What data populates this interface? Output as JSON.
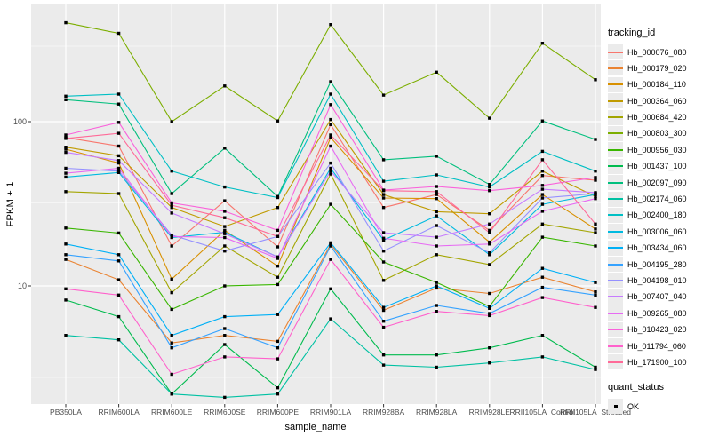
{
  "chart": {
    "x_axis_title": "sample_name",
    "y_axis_title": "FPKM + 1",
    "y_tick_labels": [
      "100",
      "10"
    ],
    "legend": {
      "tracking_title": "tracking_id",
      "quant_title": "quant_status",
      "quant_items": [
        {
          "label": "OK",
          "shape": "black-square"
        }
      ]
    },
    "colors": {
      "panel_bg": "#EBEBEB",
      "gridline": "#FFFFFF",
      "tick_label": "#4D4D4D",
      "axis_title": "#000000",
      "point": "#000000"
    }
  },
  "chart_data": {
    "type": "line",
    "title": "",
    "xlabel": "sample_name",
    "ylabel": "FPKM + 1",
    "y_scale": "log10",
    "ylim": [
      1.9,
      450
    ],
    "y_major_ticks": [
      10,
      100
    ],
    "y_minor_gridlines_approx": [
      2.8,
      31.6,
      290
    ],
    "grid": true,
    "legend_position": "right",
    "point_marker": "filled-black-square (quant_status = OK)",
    "categories": [
      "PB350LA",
      "RRIM600LA",
      "RRIM600LE",
      "RRIM600SE",
      "RRIM600PE",
      "RRIM901LA",
      "RRIM928BA",
      "RRIM928LA",
      "RRIM928LE",
      "RRII105LA_Control",
      "RRII105LA_Stressed"
    ],
    "series": [
      {
        "name": "Hb_000076_080",
        "color": "#F8766D",
        "values": [
          80,
          71,
          17.5,
          33,
          17.3,
          96,
          30,
          36,
          21.8,
          47,
          44
        ]
      },
      {
        "name": "Hb_000179_020",
        "color": "#EA8331",
        "values": [
          14.5,
          10.9,
          4.5,
          5,
          4.6,
          17.9,
          7.1,
          9.7,
          9,
          11.3,
          9.2
        ]
      },
      {
        "name": "Hb_000184_110",
        "color": "#D89000",
        "values": [
          68,
          56,
          11,
          21.8,
          13.2,
          80,
          34.3,
          34,
          18.5,
          36,
          22.2
        ]
      },
      {
        "name": "Hb_000364_060",
        "color": "#C09B00",
        "values": [
          70,
          62,
          30,
          23,
          30,
          103,
          36,
          28.3,
          27.5,
          50,
          35
        ]
      },
      {
        "name": "Hb_000684_420",
        "color": "#A3A500",
        "values": [
          37.5,
          36.5,
          9.1,
          17.5,
          11.3,
          48,
          10.8,
          15.5,
          13.5,
          23.8,
          21.1
        ]
      },
      {
        "name": "Hb_000803_300",
        "color": "#7CAE00",
        "values": [
          400,
          345,
          100,
          165,
          101,
          390,
          145,
          200,
          105,
          300,
          180
        ]
      },
      {
        "name": "Hb_000956_030",
        "color": "#39B600",
        "values": [
          22.5,
          21,
          7.2,
          10,
          10.2,
          31.4,
          14,
          10.5,
          7.5,
          19.8,
          17.5
        ]
      },
      {
        "name": "Hb_001437_100",
        "color": "#00BB4E",
        "values": [
          8.2,
          6.5,
          2.2,
          4.4,
          2.4,
          9.6,
          3.8,
          3.8,
          4.2,
          5,
          3.2
        ]
      },
      {
        "name": "Hb_002097_090",
        "color": "#00BF7D",
        "values": [
          136,
          128,
          36.5,
          69,
          35,
          175,
          58.6,
          61.6,
          41.5,
          101,
          78
        ]
      },
      {
        "name": "Hb_002174_060",
        "color": "#00C1A3",
        "values": [
          5,
          4.7,
          2.2,
          2.1,
          2.2,
          6.3,
          3.3,
          3.2,
          3.4,
          3.7,
          3.1
        ]
      },
      {
        "name": "Hb_002400_180",
        "color": "#00BFC4",
        "values": [
          143,
          147,
          50,
          40,
          34.5,
          147,
          43.4,
          47.4,
          40,
          66,
          50
        ]
      },
      {
        "name": "Hb_003006_060",
        "color": "#00BAE0",
        "values": [
          46,
          49,
          19.7,
          21.2,
          15,
          52,
          19,
          26.7,
          15.5,
          31.4,
          36
        ]
      },
      {
        "name": "Hb_003434_060",
        "color": "#00B0F6",
        "values": [
          18,
          15.5,
          5,
          6.5,
          6.7,
          18.3,
          7.4,
          10,
          7.3,
          12.8,
          10.5
        ]
      },
      {
        "name": "Hb_004195_280",
        "color": "#35A2FF",
        "values": [
          15.5,
          14.2,
          4.2,
          5.5,
          4.2,
          17.5,
          6.1,
          7.6,
          6.8,
          9.8,
          8.8
        ]
      },
      {
        "name": "Hb_004198_010",
        "color": "#9590FF",
        "values": [
          52,
          50,
          20.4,
          16.3,
          20,
          56,
          16.3,
          23.3,
          15.9,
          34.3,
          36.5
        ]
      },
      {
        "name": "Hb_007407_040",
        "color": "#C77CFF",
        "values": [
          65,
          58,
          27.8,
          20.8,
          15,
          50,
          21.1,
          19.8,
          23.8,
          38.8,
          37
        ]
      },
      {
        "name": "Hb_009265_080",
        "color": "#E76BF3",
        "values": [
          48.5,
          52,
          20,
          19.7,
          14.7,
          71,
          19.5,
          17.5,
          18,
          28.5,
          34
        ]
      },
      {
        "name": "Hb_010423_020",
        "color": "#FA62DB",
        "values": [
          83,
          99,
          32,
          28.5,
          21.8,
          127,
          38.3,
          40.3,
          38,
          40.9,
          45.7
        ]
      },
      {
        "name": "Hb_011794_060",
        "color": "#FF61CC",
        "values": [
          9.6,
          8.8,
          2.9,
          3.7,
          3.6,
          14.5,
          5.6,
          7,
          6.6,
          8.5,
          7.4
        ]
      },
      {
        "name": "Hb_171900_100",
        "color": "#FF6A98",
        "values": [
          79,
          85,
          31,
          26,
          20,
          83,
          38,
          37.5,
          21.1,
          58.6,
          23.8
        ]
      }
    ]
  }
}
